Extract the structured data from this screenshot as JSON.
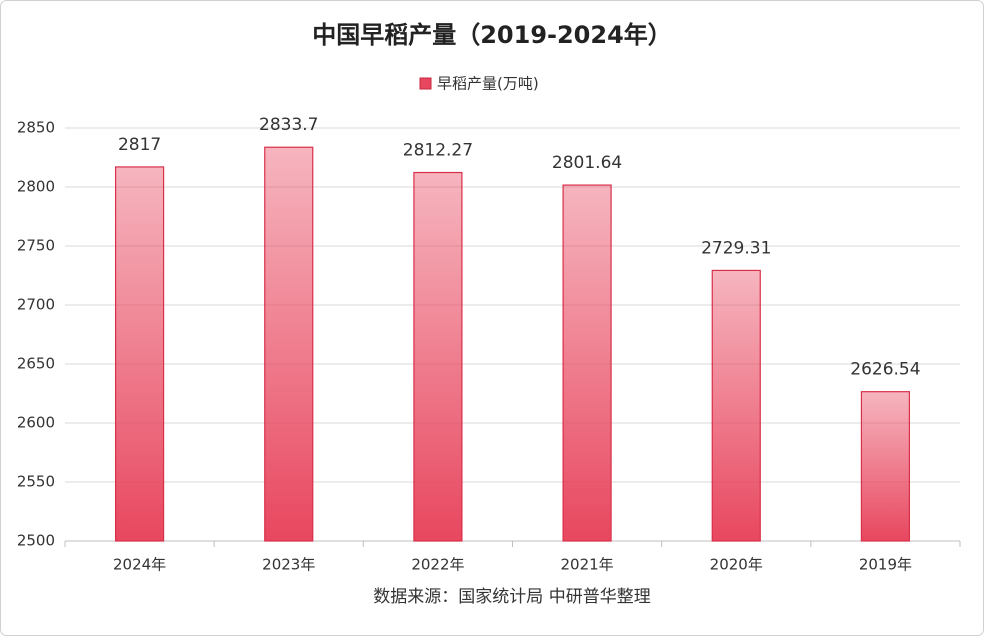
{
  "chart_data": {
    "type": "bar",
    "title": "中国早稻产量（2019-2024年）",
    "legend": "早稻产量(万吨)",
    "categories": [
      "2024年",
      "2023年",
      "2022年",
      "2021年",
      "2020年",
      "2019年"
    ],
    "values": [
      2817,
      2833.7,
      2812.27,
      2801.64,
      2729.31,
      2626.54
    ],
    "color": "#e8475f",
    "ylim": [
      2500,
      2850
    ],
    "yticks": [
      2500,
      2550,
      2600,
      2650,
      2700,
      2750,
      2800,
      2850
    ],
    "grid": true,
    "source": "数据来源：国家统计局 中研普华整理"
  }
}
